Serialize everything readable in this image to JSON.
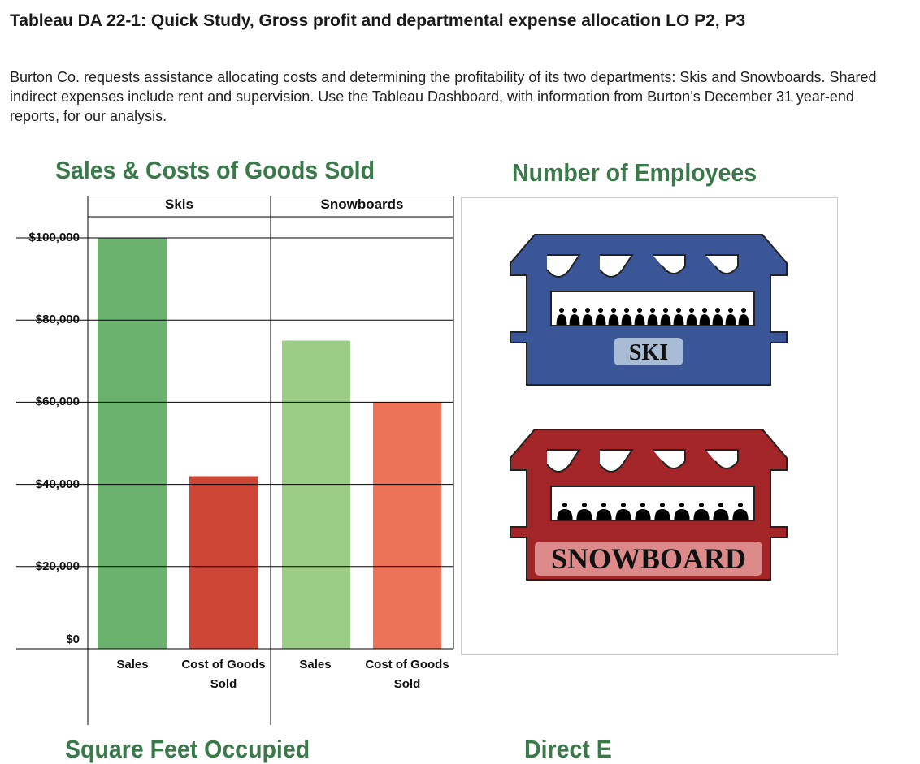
{
  "title": "Tableau DA 22-1: Quick Study, Gross profit and departmental expense allocation LO P2, P3",
  "intro": "Burton Co. requests assistance allocating costs and determining the profitability of its two departments: Skis and Snowboards. Shared indirect expenses include rent and supervision. Use the Tableau Dashboard, with information from Burton’s December 31 year-end reports, for our analysis.",
  "sections": {
    "sales": "Sales & Costs of Goods Sold",
    "employees": "Number of Employees",
    "square_feet": "Square Feet Occupied",
    "direct": "Direct E"
  },
  "chart_data": {
    "type": "bar",
    "title": "Sales & Costs of Goods Sold",
    "panels": [
      "Skis",
      "Snowboards"
    ],
    "categories": [
      "Sales",
      "Cost of Goods Sold"
    ],
    "series": [
      {
        "panel": "Skis",
        "values": [
          100000,
          42000
        ],
        "colors": [
          "#6ab26d",
          "#cc4535"
        ]
      },
      {
        "panel": "Snowboards",
        "values": [
          75000,
          60000
        ],
        "colors": [
          "#9bcd87",
          "#ec7358"
        ]
      }
    ],
    "yticks": [
      "$0",
      "$20,000",
      "$40,000",
      "$60,000",
      "$80,000",
      "$100,000"
    ],
    "ylim": [
      0,
      100000
    ],
    "grid": true
  },
  "employees": {
    "ski": {
      "label": "SKI",
      "count": 15,
      "color": "#3a5696",
      "label_bg": "#a8bcd6"
    },
    "snowboard": {
      "label": "SNOWBOARD",
      "count": 10,
      "color": "#a32527",
      "label_bg": "#dc8a8a"
    }
  }
}
